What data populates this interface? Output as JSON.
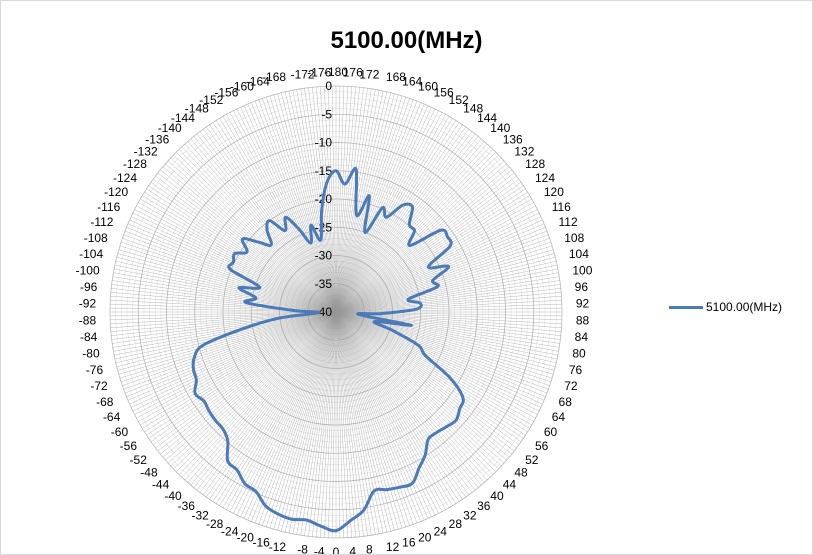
{
  "chart_data": {
    "type": "radar",
    "title": "5100.00(MHz)",
    "legend": {
      "placement": "right",
      "entries": [
        "5100.00(MHz)"
      ]
    },
    "series_color": "#4a7ab8",
    "grid": true,
    "radial_axis": {
      "range": [
        -40,
        0
      ],
      "ticks": [
        -40,
        -35,
        -30,
        -25,
        -20,
        -15,
        -10,
        -5,
        0
      ],
      "tick_labels": [
        "-40",
        "-35",
        "-30",
        "-25",
        "-20",
        "-15",
        "-10",
        "-5",
        "0"
      ]
    },
    "angular_axis": {
      "step": 4,
      "labels": [
        "0",
        "-4",
        "-8",
        "-12",
        "-16",
        "-20",
        "-24",
        "-28",
        "-32",
        "-36",
        "-40",
        "-44",
        "-48",
        "-52",
        "-56",
        "-60",
        "-64",
        "-68",
        "-72",
        "-76",
        "-80",
        "-84",
        "-88",
        "-92",
        "-96",
        "-100",
        "-104",
        "-108",
        "-112",
        "-116",
        "-120",
        "-124",
        "-128",
        "-132",
        "-136",
        "-140",
        "-144",
        "-148",
        "-152",
        "-156",
        "-160",
        "-164",
        "-168",
        "-172",
        "-176",
        "-180",
        "176",
        "172",
        "168",
        "164",
        "160",
        "156",
        "152",
        "148",
        "144",
        "140",
        "136",
        "132",
        "128",
        "124",
        "120",
        "116",
        "112",
        "108",
        "104",
        "100",
        "96",
        "92",
        "88",
        "84",
        "80",
        "76",
        "72",
        "68",
        "64",
        "60",
        "56",
        "52",
        "48",
        "44",
        "40",
        "36",
        "32",
        "28",
        "24",
        "20",
        "16",
        "12",
        "8",
        "4"
      ]
    },
    "series": [
      {
        "name": "5100.00(MHz)",
        "angles": [
          0,
          4,
          8,
          12,
          16,
          20,
          24,
          28,
          32,
          36,
          40,
          44,
          48,
          52,
          56,
          60,
          64,
          68,
          72,
          76,
          80,
          84,
          88,
          92,
          96,
          100,
          104,
          108,
          112,
          116,
          120,
          124,
          128,
          132,
          136,
          140,
          144,
          148,
          152,
          156,
          160,
          164,
          168,
          172,
          176,
          180,
          -176,
          -172,
          -168,
          -164,
          -160,
          -156,
          -152,
          -148,
          -144,
          -140,
          -136,
          -132,
          -128,
          -124,
          -120,
          -116,
          -112,
          -108,
          -104,
          -100,
          -96,
          -92,
          -88,
          -84,
          -80,
          -76,
          -72,
          -68,
          -64,
          -60,
          -56,
          -52,
          -48,
          -44,
          -40,
          -36,
          -32,
          -28,
          -24,
          -20,
          -16,
          -12,
          -8,
          -4
        ],
        "values": [
          -1.3,
          -2,
          -2.8,
          -2.5,
          -2.8,
          -3.5,
          -5.2,
          -5.6,
          -7,
          -7.4,
          -10.2,
          -11.2,
          -11.3,
          -11.5,
          -11.8,
          -11.2,
          -12.5,
          -12.8,
          -13.6,
          -15.8,
          -23.6,
          -30,
          -37,
          -32.5,
          -24,
          -25.6,
          -22.3,
          -25.8,
          -19.8,
          -19.8,
          -19.3,
          -21,
          -19,
          -21.5,
          -23.5,
          -21,
          -20,
          -23,
          -21,
          -24,
          -27,
          -24,
          -27,
          -21.8,
          -17,
          -15,
          -17.3,
          -14.5,
          -22.5,
          -18.6,
          -25,
          -19.8,
          -21,
          -17.7,
          -17,
          -19.8,
          -20,
          -22.4,
          -16.5,
          -16.2,
          -16.7,
          -21.8,
          -18.5,
          -22,
          -21.5,
          -27,
          -25,
          -25.8,
          -32,
          -36,
          -26.5,
          -33,
          -29.5,
          -24.3,
          -22.4,
          -16.7,
          -12.9,
          -12.2,
          -11.4,
          -11.8,
          -12.2,
          -12.2,
          -10.2,
          -8.7,
          -6.8,
          -7,
          -7.3,
          -7.6,
          -4.6,
          -3
        ]
      }
    ]
  }
}
